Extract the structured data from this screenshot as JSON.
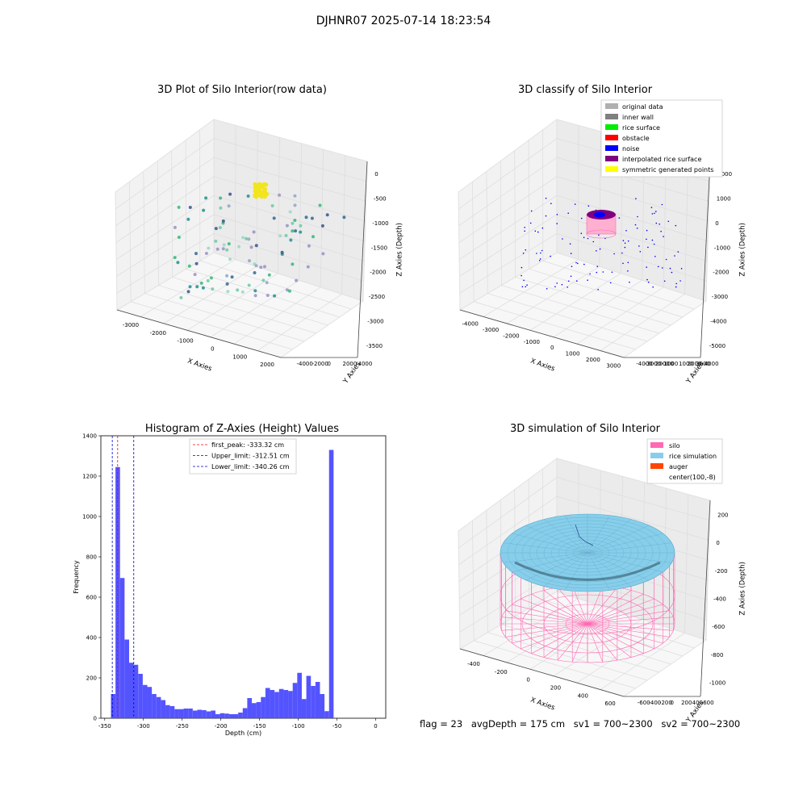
{
  "title": "DJHNR07 2025-07-14 18:23:54",
  "footer": {
    "flag": "flag = 23",
    "avg_depth": "avgDepth = 175 cm",
    "sv1": "sv1 = 700~2300",
    "sv2": "sv2 = 700~2300"
  },
  "chart_data": [
    {
      "type": "scatter",
      "title": "3D Plot of Silo Interior(row data)",
      "xlabel": "X Axies",
      "ylabel": "Y Axies",
      "zlabel": "Z Axies (Depth)",
      "x_ticks": [
        "-3000",
        "-2000",
        "-1000",
        "0",
        "1000",
        "2000"
      ],
      "y_ticks": [
        "-4000",
        "-2000",
        "0",
        "2000",
        "4000"
      ],
      "z_ticks": [
        "0",
        "-500",
        "-1000",
        "-1500",
        "-2000",
        "-2500",
        "-3000",
        "-3500"
      ],
      "note": "3D scatter of measured points colored by depth (viridis-like); dense yellow cluster near z≈0"
    },
    {
      "type": "scatter",
      "title": "3D classify of Silo Interior",
      "xlabel": "X Axies",
      "ylabel": "Y Axies",
      "zlabel": "Z Axies (Depth)",
      "x_ticks": [
        "-4000",
        "-3000",
        "-2000",
        "-1000",
        "0",
        "1000",
        "2000",
        "3000"
      ],
      "y_ticks": [
        "-4000",
        "-3000",
        "-2000",
        "-1000",
        "0",
        "1000",
        "2000",
        "3000",
        "4000"
      ],
      "z_ticks": [
        "2000",
        "1000",
        "0",
        "-1000",
        "-2000",
        "-3000",
        "-4000",
        "-5000"
      ],
      "legend": [
        {
          "label": "original data",
          "color": "#b0b0b0"
        },
        {
          "label": "inner wall",
          "color": "#808080"
        },
        {
          "label": "rice surface",
          "color": "#00ee00"
        },
        {
          "label": "obstacle",
          "color": "#ff0000"
        },
        {
          "label": "noise",
          "color": "#0000ff"
        },
        {
          "label": "interpolated rice surface",
          "color": "#800080"
        },
        {
          "label": "symmetric generated points",
          "color": "#ffff00"
        }
      ],
      "legend_placement": "top-right"
    },
    {
      "type": "bar",
      "title": "Histogram of Z-Axies (Height) Values",
      "xlabel": "Depth (cm)",
      "ylabel": "Frequency",
      "xlim": [
        -355,
        13
      ],
      "ylim": [
        0,
        1400
      ],
      "x_ticks": [
        -350,
        -300,
        -250,
        -200,
        -150,
        -100,
        -50,
        0
      ],
      "y_ticks": [
        0,
        200,
        400,
        600,
        800,
        1000,
        1200,
        1400
      ],
      "bar_color": "#4b4bff",
      "bin_start": -342,
      "bin_width": 5.87,
      "values": [
        120,
        1245,
        695,
        390,
        275,
        265,
        220,
        165,
        155,
        120,
        105,
        90,
        65,
        60,
        45,
        45,
        48,
        48,
        38,
        42,
        40,
        34,
        38,
        20,
        25,
        23,
        20,
        20,
        28,
        50,
        100,
        75,
        80,
        105,
        150,
        140,
        130,
        145,
        140,
        135,
        175,
        225,
        95,
        210,
        160,
        180,
        120,
        35,
        1330
      ],
      "vlines": [
        {
          "label": "first_peak: -333.32 cm",
          "x": -333.32,
          "color": "#ff0000"
        },
        {
          "label": "Upper_limit: -312.51 cm",
          "x": -312.51,
          "color": "#0000cc"
        },
        {
          "label": "Lower_limit: -340.26 cm",
          "x": -340.26,
          "color": "#0000cc"
        }
      ],
      "legend_placement": "top-center"
    },
    {
      "type": "area",
      "title": "3D simulation of Silo Interior",
      "xlabel": "X Axies",
      "ylabel": "Y Axies",
      "zlabel": "Z Axies (Depth)",
      "x_ticks": [
        "-400",
        "-200",
        "0",
        "200",
        "400",
        "600"
      ],
      "y_ticks": [
        "-600",
        "-400",
        "-200",
        "0",
        "200",
        "400",
        "600"
      ],
      "z_ticks": [
        "200",
        "0",
        "-200",
        "-400",
        "-600",
        "-800",
        "-1000"
      ],
      "legend": [
        {
          "label": "silo",
          "color": "#ff69b4"
        },
        {
          "label": "rice simulation",
          "color": "#87ceeb"
        },
        {
          "label": "auger",
          "color": "#ff4500"
        },
        {
          "label": "center(100,-8)",
          "color": ""
        }
      ],
      "legend_placement": "top-right"
    }
  ]
}
